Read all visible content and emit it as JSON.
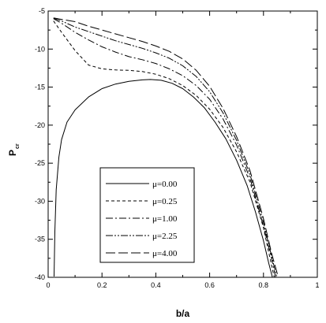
{
  "chart_data": {
    "type": "line",
    "xlabel": "b/a",
    "ylabel": {
      "main": "P",
      "sub": "cr"
    },
    "xlim": [
      0,
      1
    ],
    "ylim": [
      -40,
      -5
    ],
    "xticks": [
      0,
      0.2,
      0.4,
      0.6,
      0.8,
      1
    ],
    "xtick_labels": [
      "0",
      "0.2",
      "0.4",
      "0.6",
      "0.8",
      "1"
    ],
    "yticks": [
      -5,
      -10,
      -15,
      -20,
      -25,
      -30,
      -35,
      -40
    ],
    "ytick_labels": [
      "-5",
      "-10",
      "-15",
      "-20",
      "-25",
      "-30",
      "-35",
      "-40"
    ],
    "grid": false,
    "legend_position": "bottom-left",
    "series": [
      {
        "name": "μ=0.00",
        "dash": "solid",
        "x": [
          0.022,
          0.025,
          0.03,
          0.04,
          0.05,
          0.07,
          0.1,
          0.15,
          0.2,
          0.25,
          0.3,
          0.35,
          0.38,
          0.42,
          0.46,
          0.5,
          0.54,
          0.58,
          0.62,
          0.66,
          0.7,
          0.74,
          0.77,
          0.8,
          0.82,
          0.833
        ],
        "values": [
          -39.9,
          -34.0,
          -28.5,
          -24.2,
          -21.9,
          -19.6,
          -18.0,
          -16.3,
          -15.2,
          -14.6,
          -14.25,
          -14.05,
          -14.0,
          -14.1,
          -14.5,
          -15.2,
          -16.3,
          -17.7,
          -19.6,
          -21.8,
          -24.6,
          -28.0,
          -31.4,
          -35.2,
          -38.2,
          -40.0
        ]
      },
      {
        "name": "μ=0.25",
        "dash": "4,3",
        "x": [
          0.02,
          0.05,
          0.1,
          0.15,
          0.2,
          0.25,
          0.3,
          0.35,
          0.4,
          0.45,
          0.5,
          0.55,
          0.6,
          0.65,
          0.7,
          0.75,
          0.8,
          0.82,
          0.84
        ],
        "values": [
          -6.3,
          -7.8,
          -10.2,
          -12.1,
          -12.6,
          -12.75,
          -12.8,
          -12.95,
          -13.3,
          -13.9,
          -14.8,
          -16.1,
          -17.9,
          -20.3,
          -23.5,
          -27.5,
          -33.5,
          -36.8,
          -40.0
        ]
      },
      {
        "name": "μ=1.00",
        "dash": "9,3,2,3",
        "x": [
          0.02,
          0.05,
          0.1,
          0.15,
          0.2,
          0.25,
          0.3,
          0.35,
          0.4,
          0.45,
          0.5,
          0.55,
          0.6,
          0.65,
          0.7,
          0.75,
          0.8,
          0.83,
          0.845
        ],
        "values": [
          -6.0,
          -6.6,
          -7.8,
          -8.8,
          -9.7,
          -10.4,
          -11.0,
          -11.4,
          -11.9,
          -12.6,
          -13.5,
          -14.8,
          -16.6,
          -19.2,
          -22.6,
          -27.0,
          -33.3,
          -37.5,
          -40.0
        ]
      },
      {
        "name": "μ=2.25",
        "dash": "9,2,2,2,2,2",
        "x": [
          0.02,
          0.05,
          0.1,
          0.15,
          0.2,
          0.25,
          0.3,
          0.35,
          0.4,
          0.45,
          0.5,
          0.55,
          0.6,
          0.65,
          0.7,
          0.75,
          0.8,
          0.83,
          0.85
        ],
        "values": [
          -5.95,
          -6.3,
          -7.1,
          -7.7,
          -8.3,
          -8.9,
          -9.4,
          -9.9,
          -10.5,
          -11.2,
          -12.2,
          -13.6,
          -15.6,
          -18.4,
          -22.0,
          -26.5,
          -32.8,
          -37.2,
          -40.0
        ]
      },
      {
        "name": "μ=4.00",
        "dash": "12,4",
        "x": [
          0.02,
          0.05,
          0.1,
          0.15,
          0.2,
          0.25,
          0.3,
          0.35,
          0.4,
          0.45,
          0.5,
          0.55,
          0.6,
          0.65,
          0.7,
          0.75,
          0.8,
          0.83,
          0.855
        ],
        "values": [
          -5.9,
          -6.1,
          -6.4,
          -7.0,
          -7.5,
          -8.0,
          -8.5,
          -9.0,
          -9.6,
          -10.3,
          -11.3,
          -12.8,
          -14.9,
          -17.8,
          -21.5,
          -26.0,
          -32.3,
          -36.8,
          -40.0
        ]
      }
    ]
  }
}
